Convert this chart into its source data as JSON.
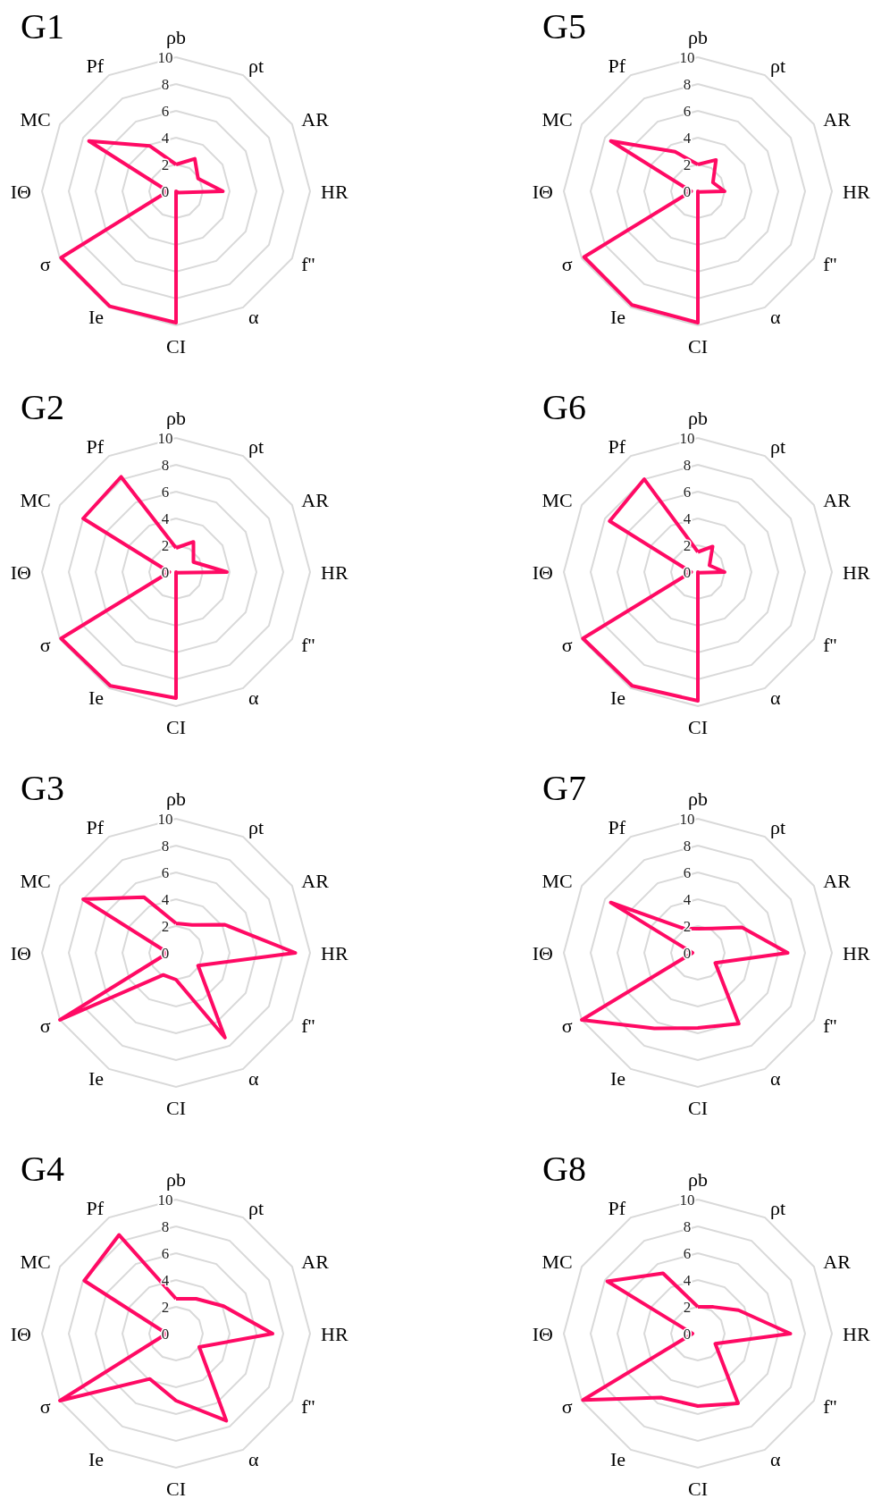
{
  "chart_data": [
    {
      "type": "radar",
      "title": "G1",
      "categories": [
        "ρb",
        "ρt",
        "AR",
        "HR",
        "f''",
        "α",
        "CI",
        "Ie",
        "σ",
        "IΘ",
        "MC",
        "Pf"
      ],
      "series": [
        {
          "color": "#ff0a64",
          "values": [
            2,
            2.8,
            1.9,
            3.5,
            0.2,
            0,
            9.8,
            9.9,
            9.9,
            0.6,
            7.5,
            3.9
          ]
        }
      ],
      "ylim": [
        0,
        10
      ],
      "yticks": [
        0,
        2,
        4,
        6,
        8,
        10
      ],
      "grid": true
    },
    {
      "type": "radar",
      "title": "G5",
      "categories": [
        "ρb",
        "ρt",
        "AR",
        "HR",
        "f''",
        "α",
        "CI",
        "Ie",
        "σ",
        "IΘ",
        "MC",
        "Pf"
      ],
      "series": [
        {
          "color": "#ff0a64",
          "values": [
            2,
            2.7,
            1.3,
            2,
            0.1,
            0,
            9.8,
            9.8,
            9.8,
            0.5,
            7.5,
            3.4
          ]
        }
      ],
      "ylim": [
        0,
        10
      ],
      "yticks": [
        0,
        2,
        4,
        6,
        8,
        10
      ],
      "grid": true
    },
    {
      "type": "radar",
      "title": "G2",
      "categories": [
        "ρb",
        "ρt",
        "AR",
        "HR",
        "f''",
        "α",
        "CI",
        "Ie",
        "σ",
        "IΘ",
        "MC",
        "Pf"
      ],
      "series": [
        {
          "color": "#ff0a64",
          "values": [
            1.8,
            2.6,
            1.5,
            3.8,
            0.1,
            0,
            9.4,
            9.8,
            9.9,
            0.5,
            8,
            8.2
          ]
        }
      ],
      "ylim": [
        0,
        10
      ],
      "yticks": [
        0,
        2,
        4,
        6,
        8,
        10
      ],
      "grid": true
    },
    {
      "type": "radar",
      "title": "G6",
      "categories": [
        "ρb",
        "ρt",
        "AR",
        "HR",
        "f''",
        "α",
        "CI",
        "Ie",
        "σ",
        "IΘ",
        "MC",
        "Pf"
      ],
      "series": [
        {
          "color": "#ff0a64",
          "values": [
            1.5,
            2.2,
            1,
            2,
            0.1,
            0,
            9.6,
            9.8,
            9.9,
            0.5,
            7.6,
            8
          ]
        }
      ],
      "ylim": [
        0,
        10
      ],
      "yticks": [
        0,
        2,
        4,
        6,
        8,
        10
      ],
      "grid": true
    },
    {
      "type": "radar",
      "title": "G3",
      "categories": [
        "ρb",
        "ρt",
        "AR",
        "HR",
        "f''",
        "α",
        "CI",
        "Ie",
        "σ",
        "IΘ",
        "MC",
        "Pf"
      ],
      "series": [
        {
          "color": "#ff0a64",
          "values": [
            2.2,
            2.4,
            4.2,
            8.9,
            1.9,
            7.3,
            2,
            1.9,
            10,
            0.6,
            8,
            4.8
          ]
        }
      ],
      "ylim": [
        0,
        10
      ],
      "yticks": [
        0,
        2,
        4,
        6,
        8,
        10
      ],
      "grid": true
    },
    {
      "type": "radar",
      "title": "G7",
      "categories": [
        "ρb",
        "ρt",
        "AR",
        "HR",
        "f''",
        "α",
        "CI",
        "Ie",
        "σ",
        "IΘ",
        "MC",
        "Pf"
      ],
      "series": [
        {
          "color": "#ff0a64",
          "values": [
            1.8,
            2.1,
            3.8,
            6.7,
            1.5,
            6.1,
            5.6,
            6.5,
            10,
            0.4,
            7.5,
            2.1
          ]
        }
      ],
      "ylim": [
        0,
        10
      ],
      "yticks": [
        0,
        2,
        4,
        6,
        8,
        10
      ],
      "grid": true
    },
    {
      "type": "radar",
      "title": "G4",
      "categories": [
        "ρb",
        "ρt",
        "AR",
        "HR",
        "f''",
        "α",
        "CI",
        "Ie",
        "σ",
        "IΘ",
        "MC",
        "Pf"
      ],
      "series": [
        {
          "color": "#ff0a64",
          "values": [
            2.6,
            3,
            4.1,
            7.2,
            2,
            7.5,
            5,
            3.9,
            10,
            0.7,
            7.9,
            8.5
          ]
        }
      ],
      "ylim": [
        0,
        10
      ],
      "yticks": [
        0,
        2,
        4,
        6,
        8,
        10
      ],
      "grid": true
    },
    {
      "type": "radar",
      "title": "G8",
      "categories": [
        "ρb",
        "ρt",
        "AR",
        "HR",
        "f''",
        "α",
        "CI",
        "Ie",
        "σ",
        "IΘ",
        "MC",
        "Pf"
      ],
      "series": [
        {
          "color": "#ff0a64",
          "values": [
            2,
            2.3,
            3.5,
            6.9,
            1.5,
            6,
            5.4,
            5.5,
            9.9,
            0.4,
            7.8,
            5.2
          ]
        }
      ],
      "ylim": [
        0,
        10
      ],
      "yticks": [
        0,
        2,
        4,
        6,
        8,
        10
      ],
      "grid": true
    }
  ]
}
